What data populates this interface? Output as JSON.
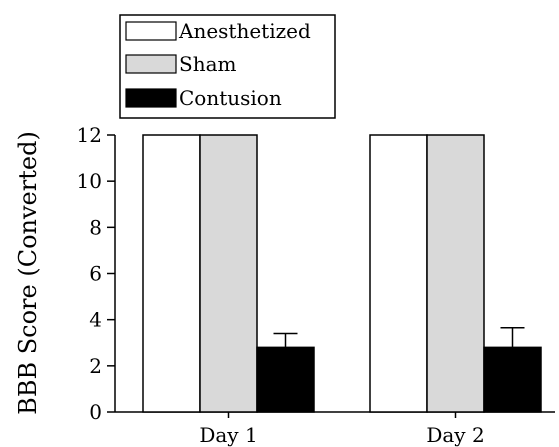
{
  "chart_data": {
    "type": "bar",
    "title": "",
    "xlabel": "",
    "ylabel": "BBB Score (Converted)",
    "categories": [
      "Day 1",
      "Day 2"
    ],
    "ylim": [
      0,
      12
    ],
    "yticks": [
      0,
      2,
      4,
      6,
      8,
      10,
      12
    ],
    "series": [
      {
        "name": "Anesthetized",
        "values": [
          12,
          12
        ],
        "errors": [
          0,
          0
        ],
        "color": "#ffffff"
      },
      {
        "name": "Sham",
        "values": [
          12,
          12
        ],
        "errors": [
          0,
          0
        ],
        "color": "#d9d9d9"
      },
      {
        "name": "Contusion",
        "values": [
          2.8,
          2.8
        ],
        "errors": [
          0.6,
          0.85
        ],
        "color": "#000000"
      }
    ],
    "legend_position": "top-left",
    "grid": false
  }
}
